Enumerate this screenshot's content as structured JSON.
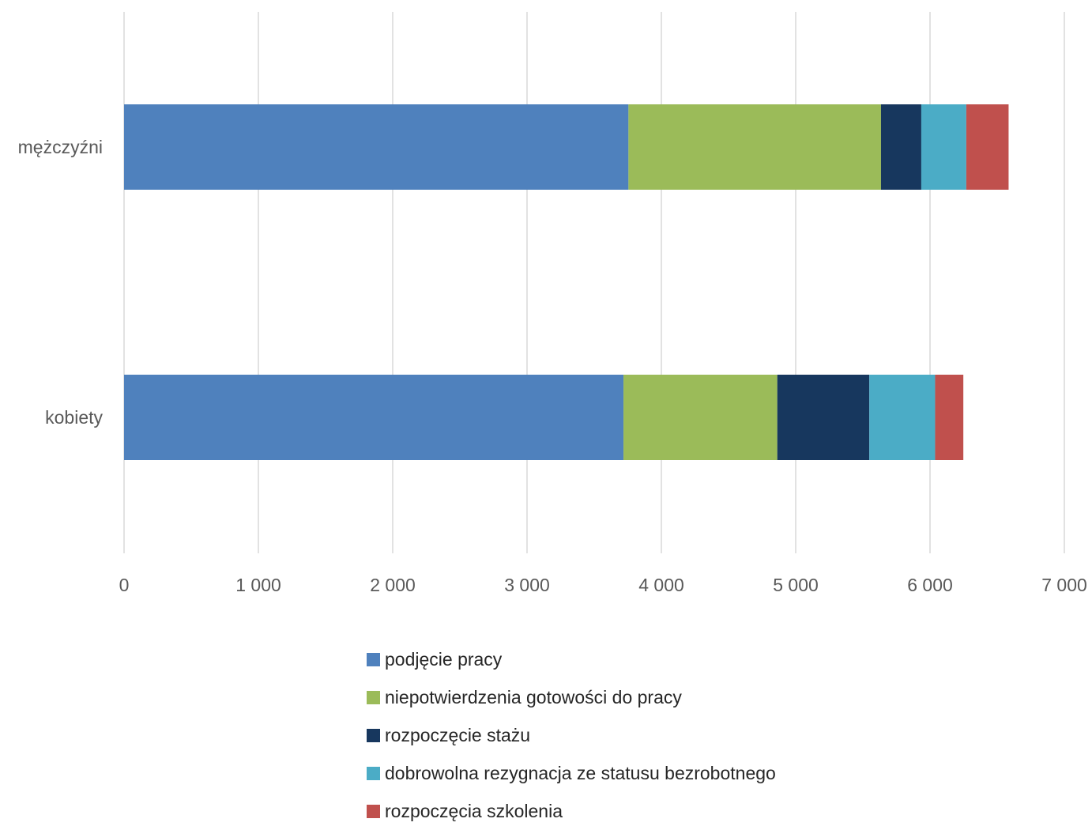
{
  "chart_data": {
    "type": "bar",
    "orientation": "horizontal",
    "stacked": true,
    "categories": [
      "mężczyźni",
      "kobiety"
    ],
    "series": [
      {
        "name": "podjęcie pracy",
        "color": "#4F81BD",
        "values": [
          3755,
          3718
        ]
      },
      {
        "name": "niepotwierdzenia gotowości do pracy",
        "color": "#9BBB59",
        "values": [
          1880,
          1145
        ]
      },
      {
        "name": "rozpoczęcie stażu",
        "color": "#17375E",
        "values": [
          300,
          685
        ]
      },
      {
        "name": "dobrowolna rezygnacja ze statusu bezrobotnego",
        "color": "#4BACC6",
        "values": [
          335,
          490
        ]
      },
      {
        "name": "rozpoczęcia szkolenia",
        "color": "#C0504D",
        "values": [
          315,
          210
        ]
      }
    ],
    "xlim": [
      0,
      7000
    ],
    "xticks": [
      0,
      1000,
      2000,
      3000,
      4000,
      5000,
      6000,
      7000
    ],
    "xtick_labels": [
      "0",
      "1 000",
      "2 000",
      "3 000",
      "4 000",
      "5 000",
      "6 000",
      "7 000"
    ],
    "grid": true,
    "gridline_color": "#D9D9D9",
    "legend_position": "bottom"
  }
}
